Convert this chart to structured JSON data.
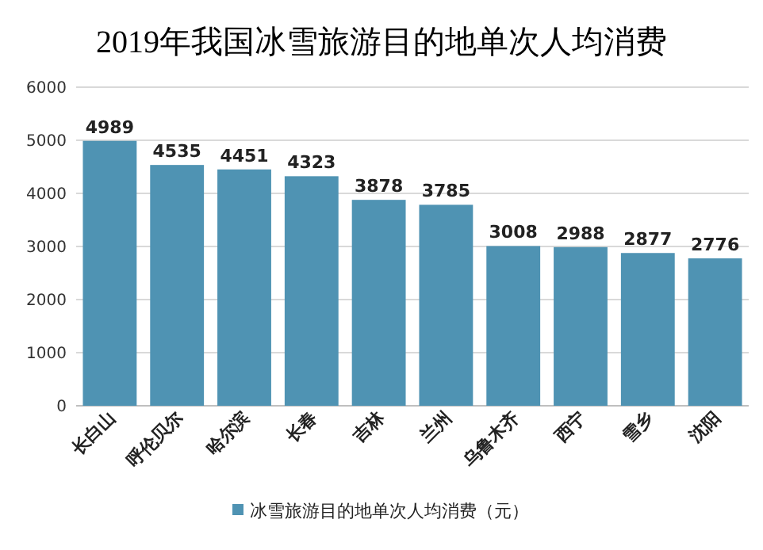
{
  "chart_data": {
    "type": "bar",
    "title": "2019年我国冰雪旅游目的地单次人均消费",
    "categories": [
      "长白山",
      "呼伦贝尔",
      "哈尔滨",
      "长春",
      "吉林",
      "兰州",
      "乌鲁木齐",
      "西宁",
      "雪乡",
      "沈阳"
    ],
    "series": [
      {
        "name": "冰雪旅游目的地单次人均消费（元）",
        "color": "#4f93b3",
        "values": [
          4989,
          4535,
          4451,
          4323,
          3878,
          3785,
          3008,
          2988,
          2877,
          2776
        ]
      }
    ],
    "ylim": [
      0,
      6000
    ],
    "yticks": [
      0,
      1000,
      2000,
      3000,
      4000,
      5000,
      6000
    ],
    "grid": "y",
    "legend": "bottom",
    "data_labels": true
  }
}
